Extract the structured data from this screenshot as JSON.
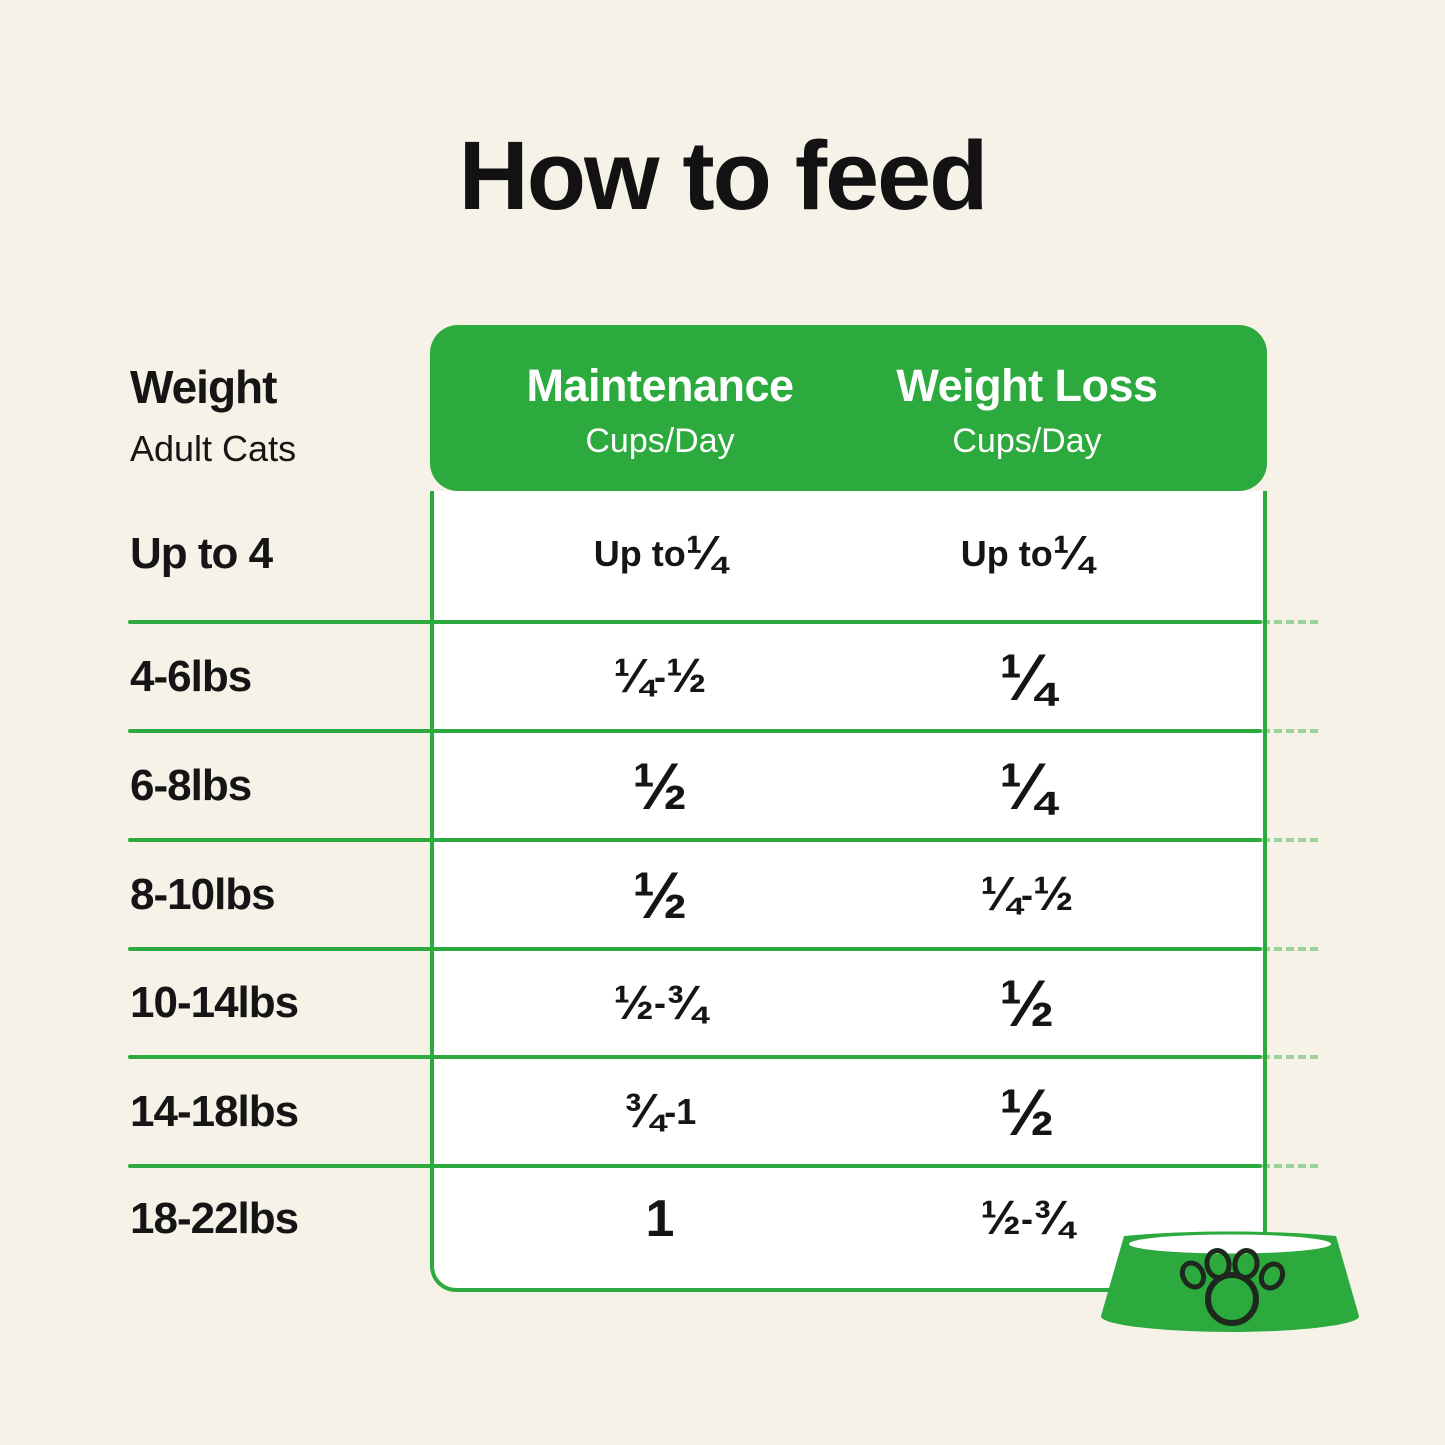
{
  "page": {
    "title": "How to feed"
  },
  "colors": {
    "green": "#2caa3e",
    "background": "#f6f2e7",
    "text": "#151515",
    "white": "#ffffff"
  },
  "row_header": {
    "title": "Weight",
    "subtitle": "Adult Cats"
  },
  "columns": [
    {
      "label": "Maintenance",
      "sublabel": "Cups/Day"
    },
    {
      "label": "Weight Loss",
      "sublabel": "Cups/Day"
    }
  ],
  "rows": [
    {
      "weight": "Up to 4",
      "maintenance": "Up to ¼",
      "weight_loss": "Up to ¼"
    },
    {
      "weight": "4-6lbs",
      "maintenance": "¼-½",
      "weight_loss": "¼"
    },
    {
      "weight": "6-8lbs",
      "maintenance": "½",
      "weight_loss": "¼"
    },
    {
      "weight": "8-10lbs",
      "maintenance": "½",
      "weight_loss": "¼-½"
    },
    {
      "weight": "10-14lbs",
      "maintenance": "½-¾",
      "weight_loss": "½"
    },
    {
      "weight": "14-18lbs",
      "maintenance": "¾-1",
      "weight_loss": "½"
    },
    {
      "weight": "18-22lbs",
      "maintenance": "1",
      "weight_loss": "½-¾"
    }
  ],
  "icons": {
    "bowl": "pet-bowl-with-paw-print"
  },
  "chart_data": {
    "type": "table",
    "title": "How to feed",
    "columns": [
      "Weight (Adult Cats)",
      "Maintenance Cups/Day",
      "Weight Loss Cups/Day"
    ],
    "rows": [
      [
        "Up to 4",
        "Up to ¼",
        "Up to ¼"
      ],
      [
        "4-6lbs",
        "¼-½",
        "¼"
      ],
      [
        "6-8lbs",
        "½",
        "¼"
      ],
      [
        "8-10lbs",
        "½",
        "¼-½"
      ],
      [
        "10-14lbs",
        "½-¾",
        "½"
      ],
      [
        "14-18lbs",
        "¾-1",
        "½"
      ],
      [
        "18-22lbs",
        "1",
        "½-¾"
      ]
    ]
  }
}
